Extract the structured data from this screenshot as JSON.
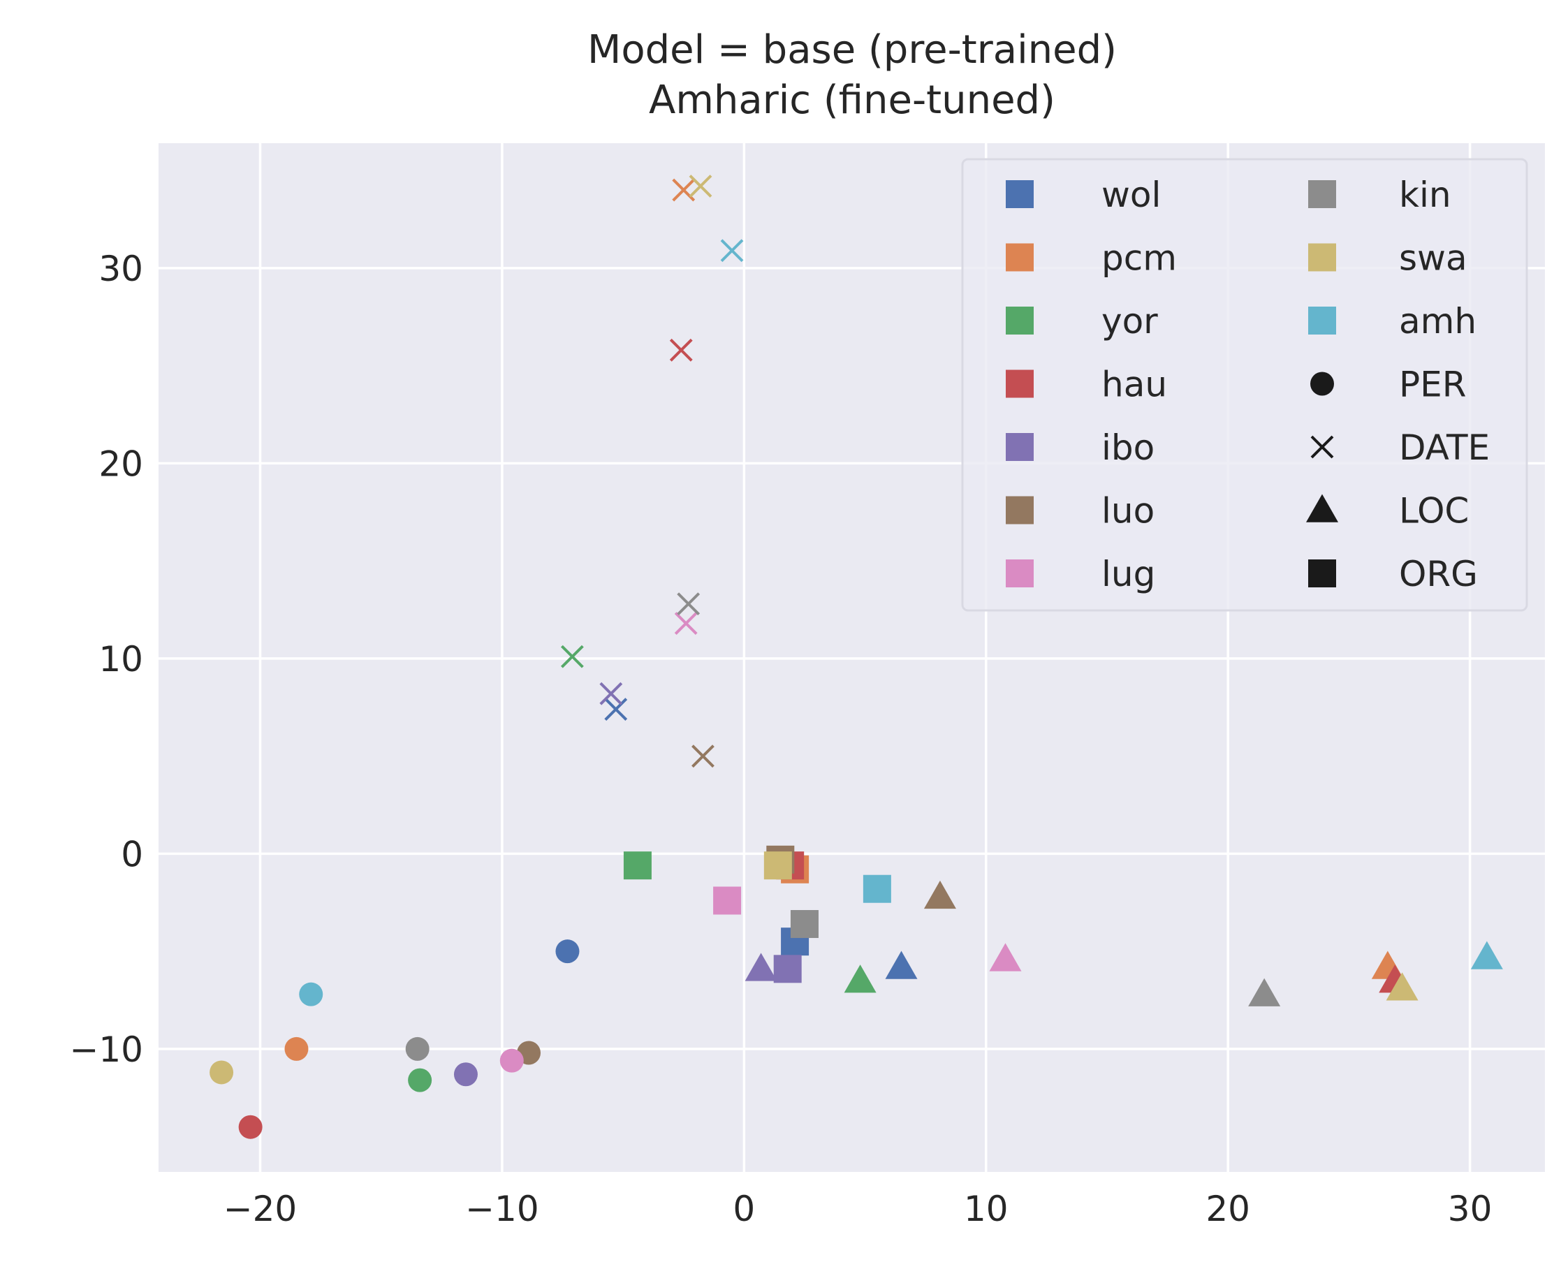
{
  "chart_data": {
    "type": "scatter",
    "title": [
      "Model = base (pre-trained)",
      "Amharic (fine-tuned)"
    ],
    "xlabel": "",
    "ylabel": "",
    "xlim": [
      -24.2,
      33.1
    ],
    "ylim": [
      -16.3,
      36.4
    ],
    "xticks": [
      -20,
      -10,
      0,
      10,
      20,
      30
    ],
    "yticks": [
      -10,
      0,
      10,
      20,
      30
    ],
    "xtick_labels": [
      "−20",
      "−10",
      "0",
      "10",
      "20",
      "30"
    ],
    "ytick_labels": [
      "−10",
      "0",
      "10",
      "20",
      "30"
    ],
    "grid": true,
    "background": "#eaeaf2",
    "legend_position": "top-right",
    "languages": [
      {
        "code": "wol",
        "color": "#4c72b0"
      },
      {
        "code": "pcm",
        "color": "#dd8452"
      },
      {
        "code": "yor",
        "color": "#55a868"
      },
      {
        "code": "hau",
        "color": "#c44e52"
      },
      {
        "code": "ibo",
        "color": "#8172b3"
      },
      {
        "code": "luo",
        "color": "#937860"
      },
      {
        "code": "lug",
        "color": "#da8bc3"
      },
      {
        "code": "kin",
        "color": "#8c8c8c"
      },
      {
        "code": "swa",
        "color": "#ccb974"
      },
      {
        "code": "amh",
        "color": "#64b5cd"
      }
    ],
    "entity_types": [
      {
        "label": "PER",
        "marker": "circle"
      },
      {
        "label": "DATE",
        "marker": "x"
      },
      {
        "label": "LOC",
        "marker": "triangle"
      },
      {
        "label": "ORG",
        "marker": "square"
      }
    ],
    "points": [
      {
        "lang": "wol",
        "entity": "PER",
        "x": -7.3,
        "y": -5.0
      },
      {
        "lang": "pcm",
        "entity": "PER",
        "x": -18.5,
        "y": -10.0
      },
      {
        "lang": "yor",
        "entity": "PER",
        "x": -13.4,
        "y": -11.6
      },
      {
        "lang": "hau",
        "entity": "PER",
        "x": -20.4,
        "y": -14.0
      },
      {
        "lang": "ibo",
        "entity": "PER",
        "x": -11.5,
        "y": -11.3
      },
      {
        "lang": "luo",
        "entity": "PER",
        "x": -8.9,
        "y": -10.2
      },
      {
        "lang": "lug",
        "entity": "PER",
        "x": -9.6,
        "y": -10.6
      },
      {
        "lang": "kin",
        "entity": "PER",
        "x": -13.5,
        "y": -10.0
      },
      {
        "lang": "swa",
        "entity": "PER",
        "x": -21.6,
        "y": -11.2
      },
      {
        "lang": "amh",
        "entity": "PER",
        "x": -17.9,
        "y": -7.2
      },
      {
        "lang": "wol",
        "entity": "DATE",
        "x": -5.3,
        "y": 7.4
      },
      {
        "lang": "pcm",
        "entity": "DATE",
        "x": -2.5,
        "y": 34.0
      },
      {
        "lang": "yor",
        "entity": "DATE",
        "x": -7.1,
        "y": 10.1
      },
      {
        "lang": "hau",
        "entity": "DATE",
        "x": -2.6,
        "y": 25.8
      },
      {
        "lang": "ibo",
        "entity": "DATE",
        "x": -5.5,
        "y": 8.2
      },
      {
        "lang": "luo",
        "entity": "DATE",
        "x": -1.7,
        "y": 5.0
      },
      {
        "lang": "lug",
        "entity": "DATE",
        "x": -2.4,
        "y": 11.8
      },
      {
        "lang": "kin",
        "entity": "DATE",
        "x": -2.3,
        "y": 12.8
      },
      {
        "lang": "swa",
        "entity": "DATE",
        "x": -1.8,
        "y": 34.2
      },
      {
        "lang": "amh",
        "entity": "DATE",
        "x": -0.5,
        "y": 30.9
      },
      {
        "lang": "wol",
        "entity": "LOC",
        "x": 6.5,
        "y": -5.8
      },
      {
        "lang": "pcm",
        "entity": "LOC",
        "x": 26.6,
        "y": -5.8
      },
      {
        "lang": "yor",
        "entity": "LOC",
        "x": 4.8,
        "y": -6.5
      },
      {
        "lang": "hau",
        "entity": "LOC",
        "x": 26.9,
        "y": -6.5
      },
      {
        "lang": "ibo",
        "entity": "LOC",
        "x": 0.7,
        "y": -5.9
      },
      {
        "lang": "luo",
        "entity": "LOC",
        "x": 8.1,
        "y": -2.2
      },
      {
        "lang": "lug",
        "entity": "LOC",
        "x": 10.8,
        "y": -5.4
      },
      {
        "lang": "kin",
        "entity": "LOC",
        "x": 21.5,
        "y": -7.2
      },
      {
        "lang": "swa",
        "entity": "LOC",
        "x": 27.2,
        "y": -6.9
      },
      {
        "lang": "amh",
        "entity": "LOC",
        "x": 30.7,
        "y": -5.3
      },
      {
        "lang": "pcm",
        "entity": "ORG",
        "x": 2.1,
        "y": -0.8
      },
      {
        "lang": "hau",
        "entity": "ORG",
        "x": 1.9,
        "y": -0.6
      },
      {
        "lang": "luo",
        "entity": "ORG",
        "x": 1.5,
        "y": -0.3
      },
      {
        "lang": "yor",
        "entity": "ORG",
        "x": -4.4,
        "y": -0.6
      },
      {
        "lang": "lug",
        "entity": "ORG",
        "x": -0.7,
        "y": -2.4
      },
      {
        "lang": "wol",
        "entity": "ORG",
        "x": 2.1,
        "y": -4.5
      },
      {
        "lang": "ibo",
        "entity": "ORG",
        "x": 1.8,
        "y": -5.9
      },
      {
        "lang": "kin",
        "entity": "ORG",
        "x": 2.5,
        "y": -3.6
      },
      {
        "lang": "swa",
        "entity": "ORG",
        "x": 1.4,
        "y": -0.6
      },
      {
        "lang": "amh",
        "entity": "ORG",
        "x": 5.5,
        "y": -1.8
      }
    ]
  }
}
